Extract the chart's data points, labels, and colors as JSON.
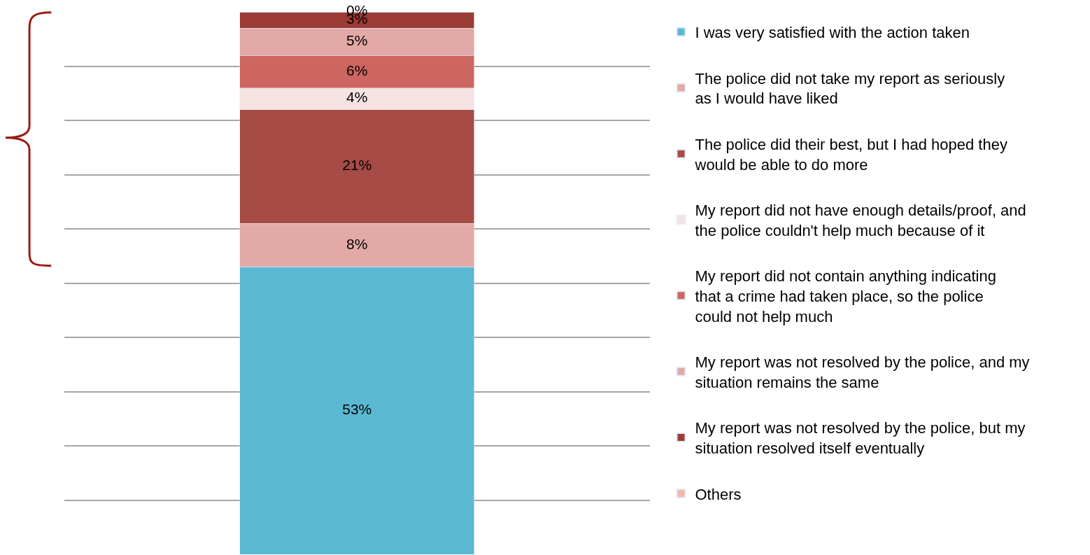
{
  "chart_data": {
    "type": "bar",
    "stacked": true,
    "categories": [
      null
    ],
    "ylim": [
      0,
      100
    ],
    "yticks": [
      {
        "value": 0,
        "label": null
      },
      {
        "value": 10,
        "label": null
      },
      {
        "value": 20,
        "label": null
      },
      {
        "value": 30,
        "label": null
      },
      {
        "value": 40,
        "label": null
      },
      {
        "value": 50,
        "label": null
      },
      {
        "value": 60,
        "label": null
      },
      {
        "value": 70,
        "label": null
      },
      {
        "value": 80,
        "label": null
      },
      {
        "value": 90,
        "label": null
      },
      {
        "value": 100,
        "label": null
      }
    ],
    "grid": "y",
    "legend": "right",
    "series": [
      {
        "name": "I was very satisfied with the action taken",
        "color": "#5bb8d2",
        "values": [
          53
        ],
        "value_labels": [
          "53%"
        ]
      },
      {
        "name": "The police did not take my report as seriously as I would have liked",
        "color": "#e2a9a7",
        "values": [
          8
        ],
        "value_labels": [
          "8%"
        ]
      },
      {
        "name": "The police did their best, but I had hoped they would be able to do more",
        "color": "#a64b45",
        "values": [
          21
        ],
        "value_labels": [
          "21%"
        ]
      },
      {
        "name": "My report did not have enough details/proof, and the police couldn't help much because of it",
        "color": "#f5e3e2",
        "values": [
          4
        ],
        "value_labels": [
          "4%"
        ]
      },
      {
        "name": "My report did not contain anything indicating that a crime had taken place, so the police could not help much",
        "color": "#cd6660",
        "values": [
          6
        ],
        "value_labels": [
          "6%"
        ]
      },
      {
        "name": "My report was not resolved by the police, and my situation remains the same",
        "color": "#e3a9a6",
        "values": [
          5
        ],
        "value_labels": [
          "5%"
        ]
      },
      {
        "name": "My report was not resolved by the police, but my situation resolved itself eventually",
        "color": "#9b3b35",
        "values": [
          3
        ],
        "value_labels": [
          "3%"
        ]
      },
      {
        "name": "Others",
        "color": "#f4b6b0",
        "values": [
          0
        ],
        "value_labels": [
          "0%"
        ]
      }
    ]
  }
}
